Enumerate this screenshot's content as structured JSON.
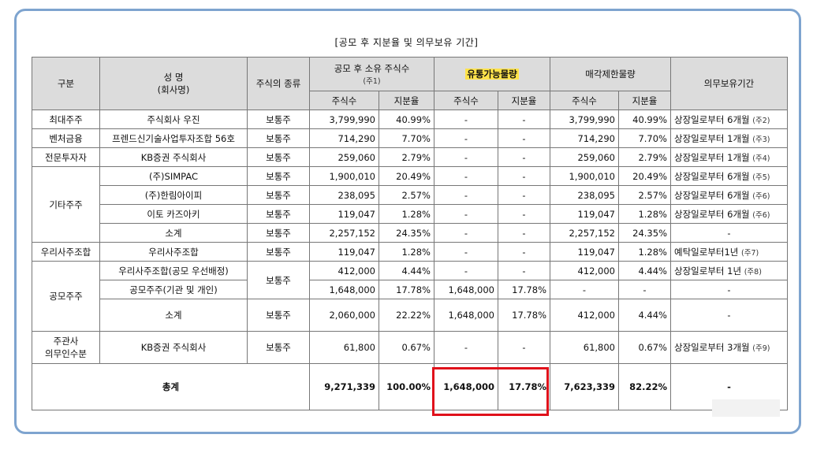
{
  "caption": "[공모 후 지분율 및 의무보유 기간]",
  "headers": {
    "category": "구분",
    "name_line1": "성 명",
    "name_line2": "(회사명)",
    "stock_type": "주식의 종류",
    "post_ipo": "공모 후 소유 주식수",
    "post_ipo_note": "(주1)",
    "tradable": "유통가능물량",
    "restricted": "매각제한물량",
    "lockup": "의무보유기간",
    "shares": "주식수",
    "ratio": "지분율"
  },
  "groups": {
    "largest": "최대주주",
    "venture": "벤처금융",
    "professional": "전문투자자",
    "other": "기타주주",
    "esop": "우리사주조합",
    "public": "공모주주",
    "underwriter_line1": "주관사",
    "underwriter_line2": "의무인수분"
  },
  "rows": [
    {
      "name": "주식회사 우진",
      "type": "보통주",
      "post_shares": "3,799,990",
      "post_ratio": "40.99%",
      "trade_shares": "-",
      "trade_ratio": "-",
      "lock_shares": "3,799,990",
      "lock_ratio": "40.99%",
      "period": "상장일로부터 6개월",
      "note": "(주2)"
    },
    {
      "name": "프렌드신기술사업투자조합 56호",
      "type": "보통주",
      "post_shares": "714,290",
      "post_ratio": "7.70%",
      "trade_shares": "-",
      "trade_ratio": "-",
      "lock_shares": "714,290",
      "lock_ratio": "7.70%",
      "period": "상장일로부터 1개월",
      "note": "(주3)"
    },
    {
      "name": "KB증권 주식회사",
      "type": "보통주",
      "post_shares": "259,060",
      "post_ratio": "2.79%",
      "trade_shares": "-",
      "trade_ratio": "-",
      "lock_shares": "259,060",
      "lock_ratio": "2.79%",
      "period": "상장일로부터 1개월",
      "note": "(주4)"
    },
    {
      "name": "(주)SIMPAC",
      "type": "보통주",
      "post_shares": "1,900,010",
      "post_ratio": "20.49%",
      "trade_shares": "-",
      "trade_ratio": "-",
      "lock_shares": "1,900,010",
      "lock_ratio": "20.49%",
      "period": "상장일로부터 6개월",
      "note": "(주5)"
    },
    {
      "name": "(주)한림아이피",
      "type": "보통주",
      "post_shares": "238,095",
      "post_ratio": "2.57%",
      "trade_shares": "-",
      "trade_ratio": "-",
      "lock_shares": "238,095",
      "lock_ratio": "2.57%",
      "period": "상장일로부터 6개월",
      "note": "(주6)"
    },
    {
      "name": "이토 카즈아키",
      "type": "보통주",
      "post_shares": "119,047",
      "post_ratio": "1.28%",
      "trade_shares": "-",
      "trade_ratio": "-",
      "lock_shares": "119,047",
      "lock_ratio": "1.28%",
      "period": "상장일로부터 6개월",
      "note": "(주6)"
    },
    {
      "name": "소계",
      "type": "보통주",
      "post_shares": "2,257,152",
      "post_ratio": "24.35%",
      "trade_shares": "-",
      "trade_ratio": "-",
      "lock_shares": "2,257,152",
      "lock_ratio": "24.35%",
      "period": "-",
      "note": ""
    },
    {
      "name": "우리사주조합",
      "type": "보통주",
      "post_shares": "119,047",
      "post_ratio": "1.28%",
      "trade_shares": "-",
      "trade_ratio": "-",
      "lock_shares": "119,047",
      "lock_ratio": "1.28%",
      "period": "예탁일로부터1년",
      "note": "(주7)"
    },
    {
      "name": "우리사주조합(공모 우선배정)",
      "type": "보통주",
      "post_shares": "412,000",
      "post_ratio": "4.44%",
      "trade_shares": "-",
      "trade_ratio": "-",
      "lock_shares": "412,000",
      "lock_ratio": "4.44%",
      "period": "상장일로부터 1년",
      "note": "(주8)"
    },
    {
      "name": "공모주주(기관 및 개인)",
      "type": "",
      "post_shares": "1,648,000",
      "post_ratio": "17.78%",
      "trade_shares": "1,648,000",
      "trade_ratio": "17.78%",
      "lock_shares": "-",
      "lock_ratio": "-",
      "period": "-",
      "note": ""
    },
    {
      "name": "소계",
      "type": "보통주",
      "post_shares": "2,060,000",
      "post_ratio": "22.22%",
      "trade_shares": "1,648,000",
      "trade_ratio": "17.78%",
      "lock_shares": "412,000",
      "lock_ratio": "4.44%",
      "period": "-",
      "note": ""
    },
    {
      "name": "KB증권 주식회사",
      "type": "보통주",
      "post_shares": "61,800",
      "post_ratio": "0.67%",
      "trade_shares": "-",
      "trade_ratio": "-",
      "lock_shares": "61,800",
      "lock_ratio": "0.67%",
      "period": "상장일로부터 3개월",
      "note": "(주9)"
    }
  ],
  "total": {
    "label": "총계",
    "post_shares": "9,271,339",
    "post_ratio": "100.00%",
    "trade_shares": "1,648,000",
    "trade_ratio": "17.78%",
    "lock_shares": "7,623,339",
    "lock_ratio": "82.22%",
    "period": "-"
  }
}
